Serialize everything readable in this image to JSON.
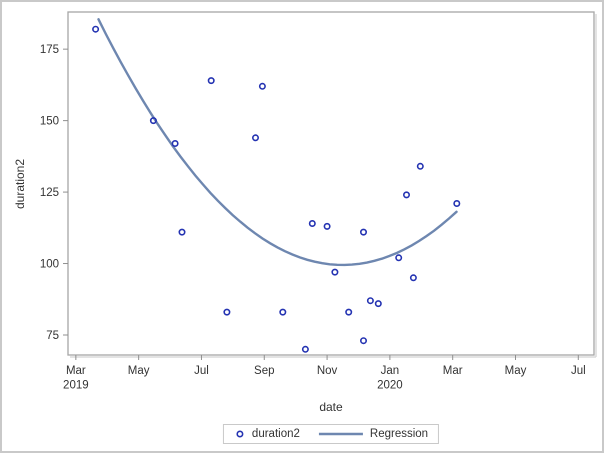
{
  "chart_data": {
    "type": "scatter",
    "title": "",
    "xlabel": "date",
    "ylabel": "duration2",
    "grid": false,
    "colors": {
      "marker": "#2433b2",
      "fit_line": "#6e87b0",
      "frame": "#a6a6a6",
      "tick": "#8f8f8f",
      "text": "#333333",
      "shadow": "#dadada"
    },
    "x_axis": {
      "unit": "months since 2019-03-01",
      "xlim": [
        -0.25,
        16.5
      ],
      "ticks": [
        {
          "x": 0,
          "lines": [
            "Mar",
            "2019"
          ]
        },
        {
          "x": 2,
          "lines": [
            "May"
          ]
        },
        {
          "x": 4,
          "lines": [
            "Jul"
          ]
        },
        {
          "x": 6,
          "lines": [
            "Sep"
          ]
        },
        {
          "x": 8,
          "lines": [
            "Nov"
          ]
        },
        {
          "x": 10,
          "lines": [
            "Jan",
            "2020"
          ]
        },
        {
          "x": 12,
          "lines": [
            "Mar"
          ]
        },
        {
          "x": 14,
          "lines": [
            "May"
          ]
        },
        {
          "x": 16,
          "lines": [
            "Jul"
          ]
        }
      ]
    },
    "y_axis": {
      "ylim": [
        68,
        188
      ],
      "ticks": [
        75,
        100,
        125,
        150,
        175
      ]
    },
    "series": [
      {
        "name": "duration2",
        "type": "scatter",
        "marker": "open-circle",
        "points": [
          {
            "date": "2019-03-20",
            "x": 0.63,
            "y": 182
          },
          {
            "date": "2019-05-15",
            "x": 2.47,
            "y": 150
          },
          {
            "date": "2019-06-05",
            "x": 3.16,
            "y": 142
          },
          {
            "date": "2019-06-12",
            "x": 3.38,
            "y": 111
          },
          {
            "date": "2019-07-10",
            "x": 4.31,
            "y": 164
          },
          {
            "date": "2019-07-25",
            "x": 4.81,
            "y": 83
          },
          {
            "date": "2019-08-22",
            "x": 5.72,
            "y": 144
          },
          {
            "date": "2019-08-29",
            "x": 5.94,
            "y": 162
          },
          {
            "date": "2019-09-18",
            "x": 6.59,
            "y": 83
          },
          {
            "date": "2019-10-10",
            "x": 7.31,
            "y": 70
          },
          {
            "date": "2019-10-16",
            "x": 7.53,
            "y": 114
          },
          {
            "date": "2019-11-01",
            "x": 8.0,
            "y": 113
          },
          {
            "date": "2019-11-08",
            "x": 8.25,
            "y": 97
          },
          {
            "date": "2019-11-21",
            "x": 8.69,
            "y": 83
          },
          {
            "date": "2019-12-05",
            "x": 9.16,
            "y": 111
          },
          {
            "date": "2019-12-05",
            "x": 9.16,
            "y": 73
          },
          {
            "date": "2019-12-12",
            "x": 9.38,
            "y": 87
          },
          {
            "date": "2019-12-19",
            "x": 9.63,
            "y": 86
          },
          {
            "date": "2020-01-09",
            "x": 10.28,
            "y": 102
          },
          {
            "date": "2020-01-16",
            "x": 10.53,
            "y": 124
          },
          {
            "date": "2020-01-23",
            "x": 10.75,
            "y": 95
          },
          {
            "date": "2020-01-30",
            "x": 10.97,
            "y": 134
          },
          {
            "date": "2020-03-05",
            "x": 12.13,
            "y": 121
          }
        ]
      },
      {
        "name": "Regression",
        "type": "fit-line",
        "fit": {
          "kind": "quadratic",
          "a": 1.42,
          "vertex_x": 8.5,
          "vertex_y": 99.5,
          "domain": [
            0.72,
            12.12
          ]
        }
      }
    ],
    "legend": {
      "position": "bottom-center",
      "entries": [
        {
          "label": "duration2",
          "symbol": "open-circle"
        },
        {
          "label": "Regression",
          "symbol": "line"
        }
      ]
    }
  }
}
